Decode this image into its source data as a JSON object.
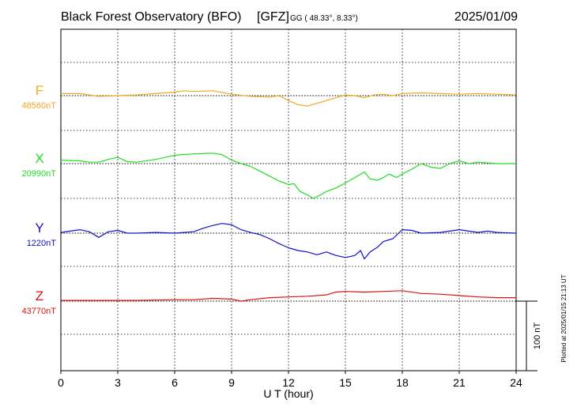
{
  "header": {
    "title": "Black Forest Observatory (BFO)",
    "institute": "[GFZ]",
    "coords": "GG ( 48.33°,   8.33°)",
    "date": "2025/01/09"
  },
  "footer": {
    "plotted": "Plotted at 2025/01/15 21:13 UT"
  },
  "chart_data": {
    "type": "line",
    "title": "Black Forest Observatory (BFO)",
    "xlabel": "U T (hour)",
    "ylabel": "",
    "xlim": [
      0,
      24
    ],
    "x_ticks": [
      "0",
      "3",
      "6",
      "9",
      "12",
      "15",
      "18",
      "21",
      "24"
    ],
    "grid": true,
    "scale_bar": {
      "label": "100 nT",
      "value": 100
    },
    "series": [
      {
        "name": "F",
        "baseline_label": "48560nT",
        "baseline": 48560,
        "color": "#f5a623",
        "x": [
          0,
          1,
          2,
          3,
          4,
          5,
          6,
          6.5,
          7,
          8,
          9,
          10,
          11,
          11.5,
          12,
          12.5,
          13,
          13.5,
          14,
          14.5,
          15,
          15.5,
          16,
          16.5,
          17,
          17.5,
          18,
          19,
          20,
          21,
          22,
          23,
          24
        ],
        "y": [
          48563,
          48563,
          48559,
          48560,
          48561,
          48563,
          48565,
          48567,
          48566,
          48567,
          48562,
          48559,
          48558,
          48560,
          48553,
          48547,
          48545,
          48549,
          48553,
          48557,
          48561,
          48560,
          48557,
          48561,
          48562,
          48560,
          48563,
          48564,
          48563,
          48562,
          48563,
          48562,
          48561
        ]
      },
      {
        "name": "X",
        "baseline_label": "20990nT",
        "baseline": 20990,
        "color": "#22dd22",
        "x": [
          0,
          1,
          1.5,
          2,
          2.5,
          3,
          3.5,
          4,
          5,
          6,
          7,
          8,
          8.5,
          9,
          9.5,
          10,
          10.5,
          11,
          11.5,
          12,
          12.3,
          12.6,
          13,
          13.3,
          13.7,
          14,
          14.5,
          15,
          15.5,
          16,
          16.3,
          16.7,
          17,
          17.3,
          17.7,
          18,
          18.5,
          19,
          19.5,
          20,
          20.5,
          21,
          21.5,
          22,
          23,
          24
        ],
        "y": [
          20995,
          20994,
          20992,
          20992,
          20996,
          20999,
          20993,
          20992,
          20996,
          21002,
          21004,
          21005,
          21003,
          20995,
          20990,
          20986,
          20979,
          20972,
          20965,
          20960,
          20961,
          20950,
          20945,
          20940,
          20945,
          20950,
          20955,
          20962,
          20970,
          20978,
          20968,
          20966,
          20970,
          20975,
          20970,
          20975,
          20982,
          20990,
          20985,
          20983,
          20990,
          20994,
          20990,
          20992,
          20990,
          20990
        ]
      },
      {
        "name": "Y",
        "baseline_label": "1220nT",
        "baseline": 1220,
        "color": "#1010cc",
        "x": [
          0,
          1,
          1.5,
          2,
          2.5,
          3,
          3.5,
          4,
          5,
          6,
          7,
          7.5,
          8,
          8.5,
          9,
          9.5,
          10,
          10.5,
          11,
          11.5,
          12,
          12.5,
          13,
          13.5,
          14,
          14.5,
          15,
          15.5,
          15.8,
          16,
          16.3,
          16.7,
          17,
          17.5,
          18,
          18.5,
          19,
          20,
          21,
          21.5,
          22,
          22.5,
          23,
          24
        ],
        "y": [
          1221,
          1225,
          1222,
          1214,
          1222,
          1224,
          1220,
          1220,
          1221,
          1220,
          1222,
          1227,
          1231,
          1234,
          1232,
          1225,
          1221,
          1218,
          1212,
          1205,
          1199,
          1195,
          1193,
          1189,
          1193,
          1188,
          1185,
          1188,
          1195,
          1183,
          1193,
          1200,
          1208,
          1212,
          1225,
          1224,
          1220,
          1221,
          1225,
          1223,
          1221,
          1223,
          1221,
          1220
        ]
      },
      {
        "name": "Z",
        "baseline_label": "43770nT",
        "baseline": 43770,
        "color": "#dd1111",
        "x": [
          0,
          2,
          4,
          6,
          7,
          8,
          9,
          9.5,
          10,
          11,
          12,
          13,
          14,
          14.5,
          15,
          16,
          17,
          18,
          19,
          20,
          21,
          22,
          23,
          24
        ],
        "y": [
          43771,
          43771,
          43771,
          43772,
          43772,
          43774,
          43773,
          43770,
          43772,
          43775,
          43776,
          43777,
          43779,
          43783,
          43784,
          43783,
          43784,
          43785,
          43781,
          43780,
          43778,
          43776,
          43775,
          43775
        ]
      }
    ]
  }
}
